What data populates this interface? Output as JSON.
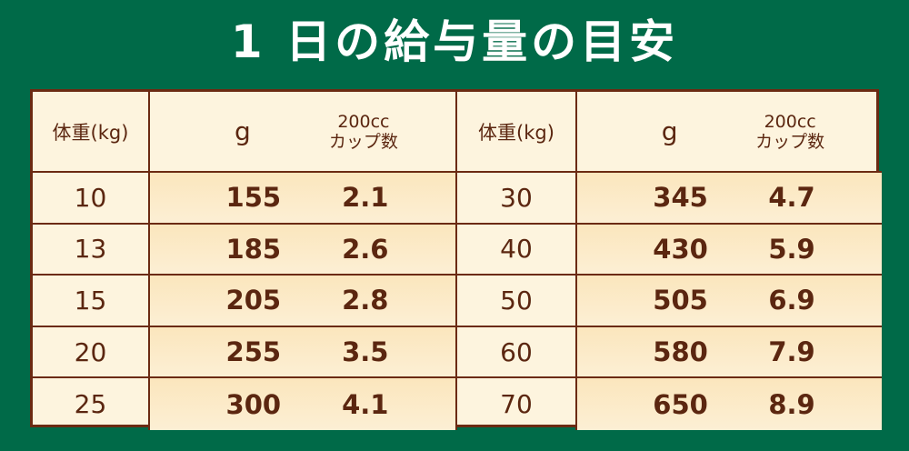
{
  "title": "1 日の給与量の目安",
  "headers": {
    "weight": "体重(kg)",
    "grams": "g",
    "cups_line1": "200cc",
    "cups_line2": "カップ数"
  },
  "left_rows": [
    {
      "weight": "10",
      "grams": "155",
      "cups": "2.1"
    },
    {
      "weight": "13",
      "grams": "185",
      "cups": "2.6"
    },
    {
      "weight": "15",
      "grams": "205",
      "cups": "2.8"
    },
    {
      "weight": "20",
      "grams": "255",
      "cups": "3.5"
    },
    {
      "weight": "25",
      "grams": "300",
      "cups": "4.1"
    }
  ],
  "right_rows": [
    {
      "weight": "30",
      "grams": "345",
      "cups": "4.7"
    },
    {
      "weight": "40",
      "grams": "430",
      "cups": "5.9"
    },
    {
      "weight": "50",
      "grams": "505",
      "cups": "6.9"
    },
    {
      "weight": "60",
      "grams": "580",
      "cups": "7.9"
    },
    {
      "weight": "70",
      "grams": "650",
      "cups": "8.9"
    }
  ],
  "colors": {
    "background": "#006a48",
    "border": "#6b2a12",
    "text": "#5b2610",
    "cell": "#fdf4de"
  }
}
